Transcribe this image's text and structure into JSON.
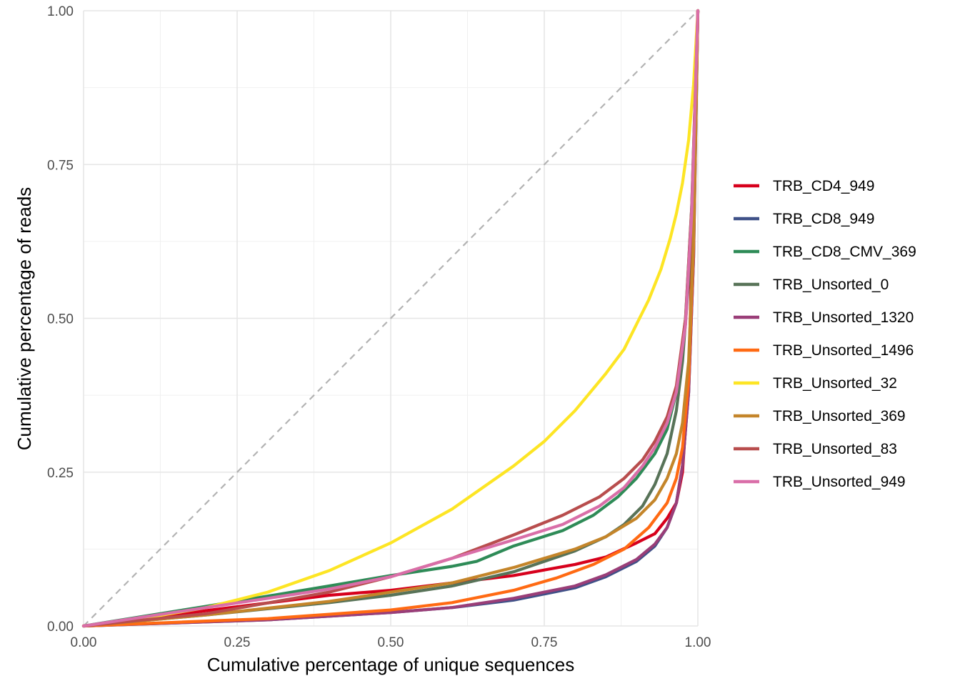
{
  "chart_data": {
    "type": "line",
    "title": "",
    "xlabel": "Cumulative percentage of unique sequences",
    "ylabel": "Cumulative percentage of reads",
    "xlim": [
      0,
      1
    ],
    "ylim": [
      0,
      1
    ],
    "x_ticks": [
      "0.00",
      "0.25",
      "0.50",
      "0.75",
      "1.00"
    ],
    "y_ticks": [
      "0.00",
      "0.25",
      "0.50",
      "0.75",
      "1.00"
    ],
    "grid": true,
    "legend_position": "right",
    "reference_line": {
      "x": [
        0,
        1
      ],
      "y": [
        0,
        1
      ],
      "style": "dashed",
      "color": "#b3b3b3"
    },
    "series": [
      {
        "name": "TRB_CD4_949",
        "color": "#d7001c",
        "x": [
          0,
          0.2,
          0.4,
          0.5,
          0.6,
          0.7,
          0.8,
          0.85,
          0.9,
          0.93,
          0.95,
          0.965,
          0.975,
          0.985,
          0.993,
          1.0
        ],
        "y": [
          0,
          0.025,
          0.05,
          0.058,
          0.07,
          0.082,
          0.1,
          0.112,
          0.135,
          0.15,
          0.175,
          0.2,
          0.25,
          0.4,
          0.7,
          1.0
        ]
      },
      {
        "name": "TRB_CD8_949",
        "color": "#3f5188",
        "x": [
          0,
          0.3,
          0.5,
          0.6,
          0.7,
          0.8,
          0.85,
          0.9,
          0.93,
          0.95,
          0.965,
          0.975,
          0.985,
          0.993,
          1.0
        ],
        "y": [
          0,
          0.01,
          0.022,
          0.03,
          0.042,
          0.062,
          0.08,
          0.105,
          0.13,
          0.16,
          0.2,
          0.26,
          0.38,
          0.6,
          1.0
        ]
      },
      {
        "name": "TRB_CD8_CMV_369",
        "color": "#2e8b57",
        "x": [
          0,
          0.2,
          0.4,
          0.5,
          0.6,
          0.64,
          0.7,
          0.78,
          0.83,
          0.87,
          0.9,
          0.93,
          0.95,
          0.965,
          0.98,
          0.99,
          1.0
        ],
        "y": [
          0,
          0.032,
          0.065,
          0.082,
          0.097,
          0.105,
          0.13,
          0.155,
          0.18,
          0.21,
          0.24,
          0.28,
          0.32,
          0.38,
          0.5,
          0.68,
          1.0
        ]
      },
      {
        "name": "TRB_Unsorted_0",
        "color": "#587358",
        "x": [
          0,
          0.2,
          0.4,
          0.5,
          0.6,
          0.7,
          0.8,
          0.85,
          0.88,
          0.91,
          0.93,
          0.95,
          0.965,
          0.975,
          0.985,
          0.993,
          1.0
        ],
        "y": [
          0,
          0.018,
          0.038,
          0.05,
          0.065,
          0.088,
          0.122,
          0.145,
          0.165,
          0.195,
          0.23,
          0.28,
          0.35,
          0.43,
          0.56,
          0.75,
          1.0
        ]
      },
      {
        "name": "TRB_Unsorted_1320",
        "color": "#9a3e78",
        "x": [
          0,
          0.3,
          0.5,
          0.6,
          0.7,
          0.8,
          0.85,
          0.9,
          0.93,
          0.95,
          0.965,
          0.975,
          0.985,
          0.993,
          1.0
        ],
        "y": [
          0,
          0.01,
          0.022,
          0.03,
          0.045,
          0.065,
          0.083,
          0.108,
          0.133,
          0.16,
          0.2,
          0.26,
          0.38,
          0.6,
          1.0
        ]
      },
      {
        "name": "TRB_Unsorted_1496",
        "color": "#ff6a13",
        "x": [
          0,
          0.3,
          0.5,
          0.6,
          0.7,
          0.77,
          0.83,
          0.88,
          0.92,
          0.95,
          0.965,
          0.975,
          0.985,
          0.993,
          1.0
        ],
        "y": [
          0,
          0.012,
          0.026,
          0.038,
          0.058,
          0.078,
          0.1,
          0.125,
          0.16,
          0.2,
          0.24,
          0.29,
          0.4,
          0.62,
          1.0
        ]
      },
      {
        "name": "TRB_Unsorted_32",
        "color": "#fde524",
        "x": [
          0,
          0.1,
          0.2,
          0.3,
          0.4,
          0.5,
          0.6,
          0.7,
          0.75,
          0.8,
          0.85,
          0.88,
          0.9,
          0.92,
          0.94,
          0.955,
          0.965,
          0.975,
          0.985,
          0.993,
          1.0
        ],
        "y": [
          0,
          0.013,
          0.03,
          0.055,
          0.09,
          0.135,
          0.19,
          0.26,
          0.3,
          0.35,
          0.41,
          0.45,
          0.49,
          0.53,
          0.58,
          0.63,
          0.67,
          0.72,
          0.79,
          0.88,
          1.0
        ]
      },
      {
        "name": "TRB_Unsorted_369",
        "color": "#c4852a",
        "x": [
          0,
          0.2,
          0.4,
          0.5,
          0.6,
          0.7,
          0.8,
          0.85,
          0.9,
          0.93,
          0.95,
          0.965,
          0.975,
          0.985,
          0.993,
          1.0
        ],
        "y": [
          0,
          0.018,
          0.04,
          0.055,
          0.07,
          0.095,
          0.125,
          0.145,
          0.175,
          0.205,
          0.24,
          0.28,
          0.33,
          0.43,
          0.63,
          1.0
        ]
      },
      {
        "name": "TRB_Unsorted_83",
        "color": "#b84d4d",
        "x": [
          0,
          0.2,
          0.4,
          0.5,
          0.6,
          0.7,
          0.78,
          0.84,
          0.88,
          0.91,
          0.93,
          0.95,
          0.965,
          0.98,
          0.99,
          1.0
        ],
        "y": [
          0,
          0.02,
          0.055,
          0.08,
          0.11,
          0.148,
          0.18,
          0.21,
          0.24,
          0.27,
          0.3,
          0.34,
          0.39,
          0.5,
          0.68,
          1.0
        ]
      },
      {
        "name": "TRB_Unsorted_949",
        "color": "#d96ea8",
        "x": [
          0,
          0.2,
          0.4,
          0.5,
          0.6,
          0.7,
          0.78,
          0.84,
          0.88,
          0.91,
          0.93,
          0.95,
          0.965,
          0.98,
          0.99,
          1.0
        ],
        "y": [
          0,
          0.03,
          0.06,
          0.08,
          0.11,
          0.14,
          0.165,
          0.195,
          0.225,
          0.26,
          0.29,
          0.33,
          0.38,
          0.49,
          0.67,
          1.0
        ]
      }
    ]
  }
}
